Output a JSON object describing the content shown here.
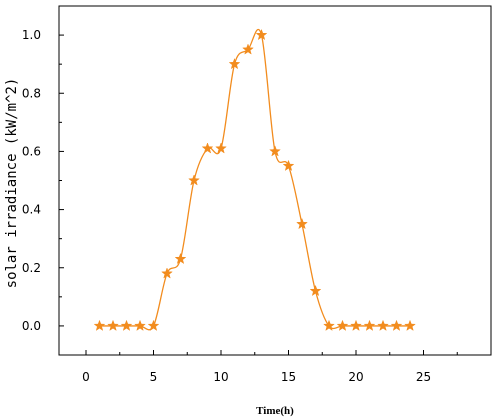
{
  "chart_data": {
    "type": "line",
    "xlabel": "Time(h)",
    "ylabel": "solar irradiance (kW/m^2)",
    "xlim": [
      -2,
      30
    ],
    "ylim": [
      -0.1,
      1.1
    ],
    "xticks": [
      0,
      5,
      10,
      15,
      20,
      25
    ],
    "yticks": [
      0.0,
      0.2,
      0.4,
      0.6,
      0.8,
      1.0
    ],
    "xtick_labels": [
      "0",
      "5",
      "10",
      "15",
      "20",
      "25"
    ],
    "ytick_labels": [
      "0.0",
      "0.2",
      "0.4",
      "0.6",
      "0.8",
      "1.0"
    ],
    "color": "#f28c1e",
    "marker": "star",
    "grid": false,
    "series": [
      {
        "x": [
          1,
          2,
          3,
          4,
          5,
          6,
          7,
          8,
          9,
          10,
          11,
          12,
          13,
          14,
          15,
          16,
          17,
          18,
          19,
          20,
          21,
          22,
          23,
          24
        ],
        "y": [
          0,
          0,
          0,
          0,
          0,
          0.18,
          0.23,
          0.5,
          0.61,
          0.61,
          0.9,
          0.95,
          1.0,
          0.6,
          0.55,
          0.35,
          0.12,
          0,
          0,
          0,
          0,
          0,
          0,
          0
        ]
      }
    ]
  }
}
